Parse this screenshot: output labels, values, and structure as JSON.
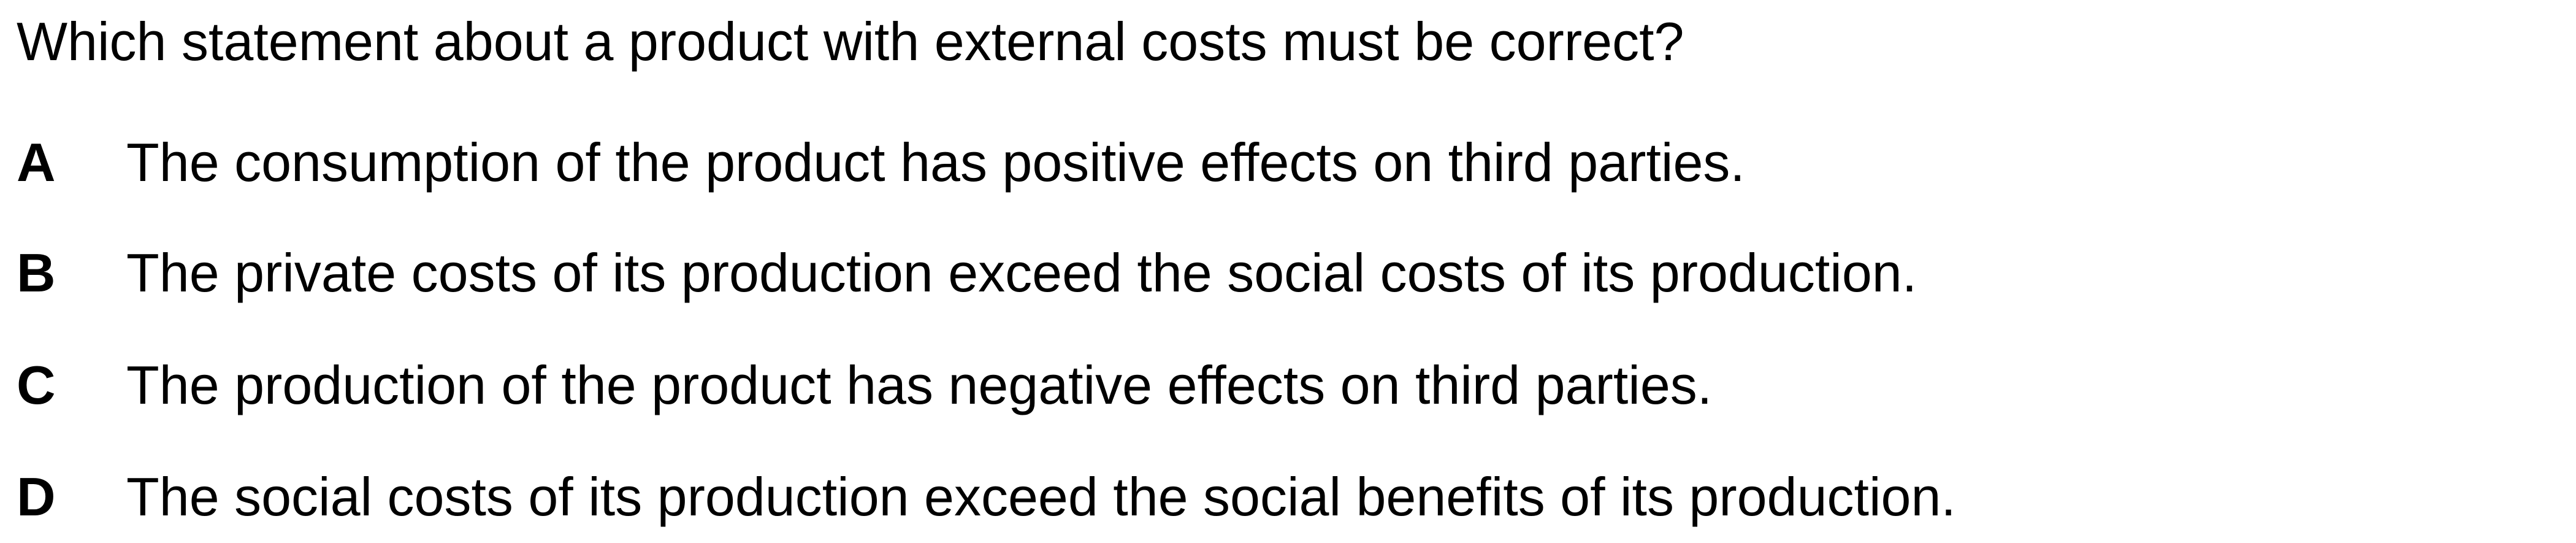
{
  "question": "Which statement about a product with external costs must be correct?",
  "options": [
    {
      "letter": "A",
      "text": "The consumption of the product has positive effects on third parties."
    },
    {
      "letter": "B",
      "text": "The private costs of its production exceed the social costs of its production."
    },
    {
      "letter": "C",
      "text": "The production of the product has negative effects on third parties."
    },
    {
      "letter": "D",
      "text": "The social costs of its production exceed the social benefits of its production."
    }
  ]
}
